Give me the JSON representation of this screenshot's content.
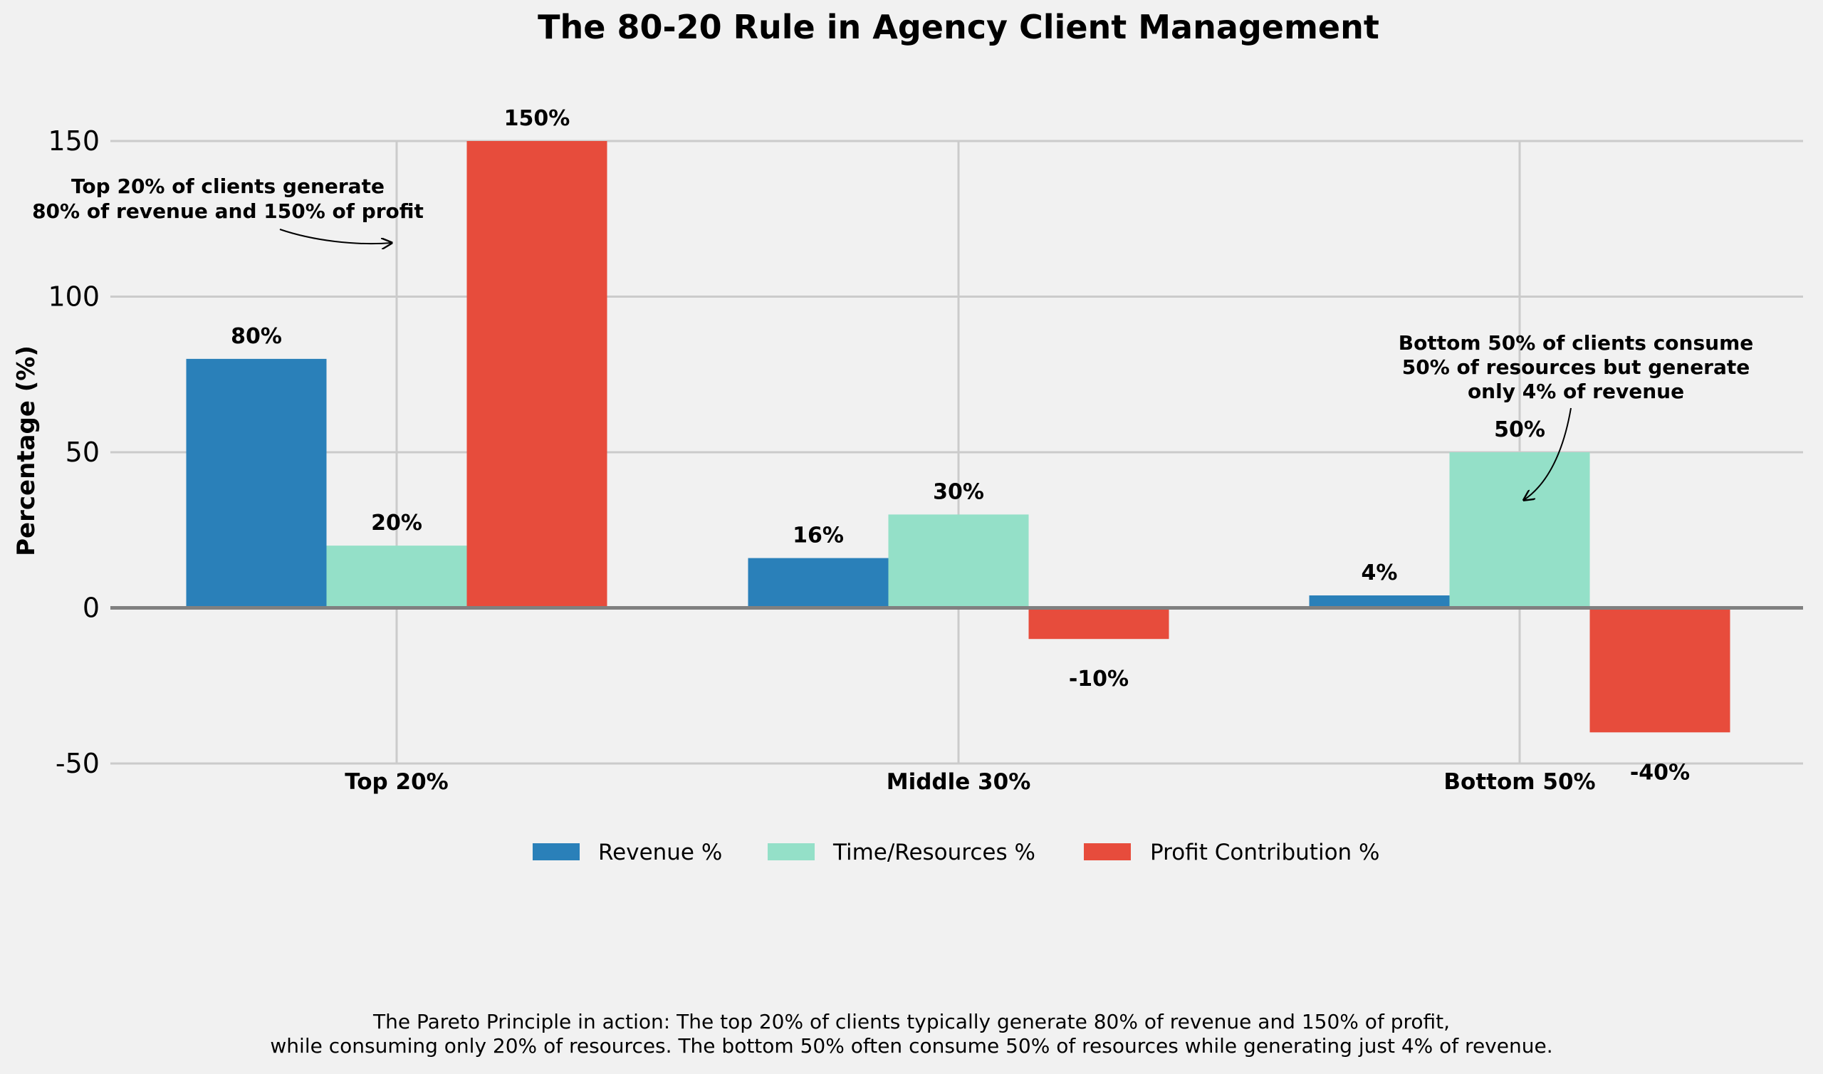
{
  "chart_data": {
    "type": "bar",
    "title": "The 80-20 Rule in Agency Client Management",
    "xlabel": "",
    "ylabel": "Percentage (%)",
    "ylim": [
      -50,
      150
    ],
    "yticks": [
      -50,
      0,
      50,
      100,
      150
    ],
    "ytick_labels": [
      "-50",
      "0",
      "50",
      "100",
      "150"
    ],
    "categories": [
      "Top 20%",
      "Middle 30%",
      "Bottom 50%"
    ],
    "series": [
      {
        "name": "Revenue %",
        "color": "#2a80b9",
        "values": [
          80,
          16,
          4
        ],
        "labels": [
          "80%",
          "16%",
          "4%"
        ]
      },
      {
        "name": "Time/Resources %",
        "color": "#94e0c8",
        "values": [
          20,
          30,
          50
        ],
        "labels": [
          "20%",
          "30%",
          "50%"
        ]
      },
      {
        "name": "Profit Contribution %",
        "color": "#e74c3c",
        "values": [
          150,
          -10,
          -40
        ],
        "labels": [
          "150%",
          "-10%",
          "-40%"
        ]
      }
    ],
    "grid": true,
    "legend": "bottom-center",
    "annotations": [
      {
        "lines": [
          "Top 20% of clients generate",
          "80% of revenue and 150% of profit"
        ],
        "target_category": 0,
        "target_value": 150
      },
      {
        "lines": [
          "Bottom 50% of clients consume",
          "50% of resources but generate",
          "only 4% of revenue"
        ],
        "target_category": 2,
        "target_value": 50
      }
    ],
    "caption": [
      "The Pareto Principle in action: The top 20% of clients typically generate 80% of revenue and 150% of profit,",
      "while consuming only 20% of resources. The bottom 50% often consume 50% of resources while generating just 4% of revenue."
    ]
  }
}
